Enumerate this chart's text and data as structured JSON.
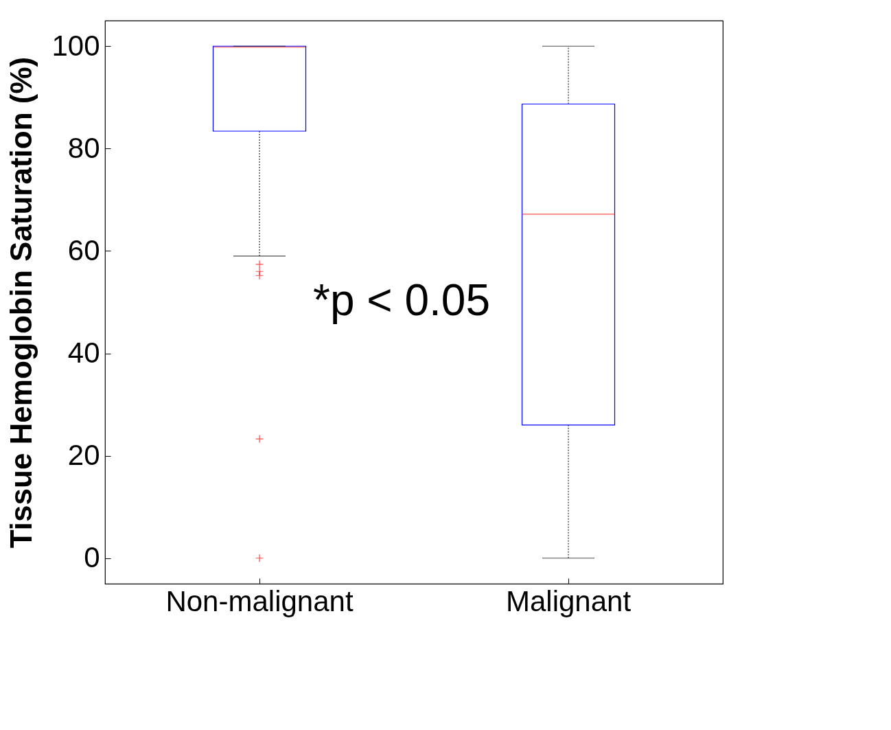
{
  "chart_data": {
    "type": "box",
    "ylabel": "Tissue Hemoglobin Saturation (%)",
    "categories": [
      "Non-malignant",
      "Malignant"
    ],
    "boxes": [
      {
        "low": 59,
        "q1": 83.4,
        "median": 99.8,
        "q3": 100,
        "high": 100,
        "outliers": [
          57.4,
          56,
          55.2,
          23.3,
          0
        ]
      },
      {
        "low": 0,
        "q1": 26,
        "median": 67.2,
        "q3": 88.7,
        "high": 100
      }
    ],
    "color": "#0000ff",
    "ylim": [
      -5,
      105
    ],
    "yticks": [
      0,
      20,
      40,
      60,
      80,
      100
    ],
    "grid": false,
    "annotations": [
      "*p < 0.05"
    ]
  }
}
